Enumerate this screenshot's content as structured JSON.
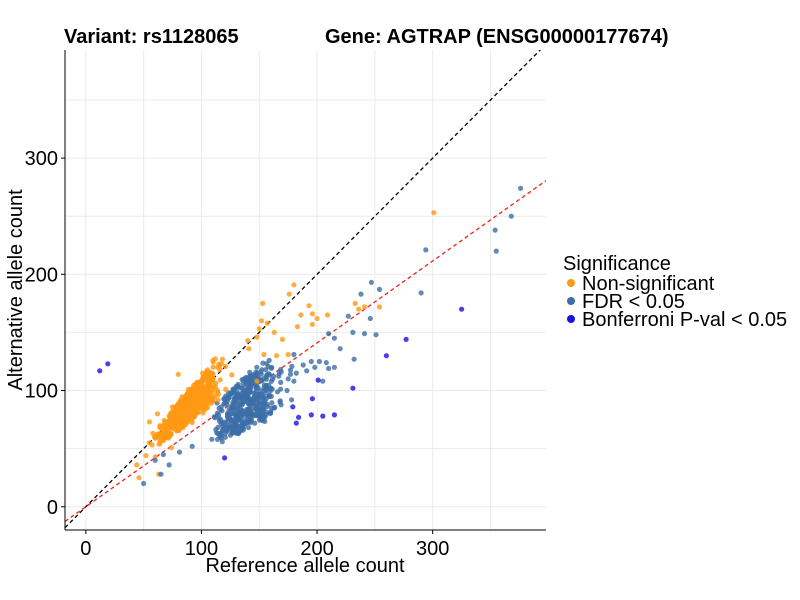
{
  "chart_data": {
    "type": "scatter",
    "title_left": "Variant: rs1128065",
    "title_right": "Gene: AGTRAP (ENSG00000177674)",
    "xlabel": "Reference allele count",
    "ylabel": "Alternative allele count",
    "xlim": [
      -18,
      398
    ],
    "ylim": [
      -20,
      393
    ],
    "x_ticks": [
      0,
      100,
      200,
      300
    ],
    "y_ticks": [
      0,
      100,
      200,
      300
    ],
    "grid": true,
    "legend": {
      "title": "Significance",
      "position": "right",
      "entries": [
        {
          "label": "Non-significant",
          "color": "#ff9914"
        },
        {
          "label": "FDR < 0.05",
          "color": "#3c6ea7"
        },
        {
          "label": "Bonferroni P-val < 0.05",
          "color": "#1a10e8"
        }
      ]
    },
    "reference_lines": [
      {
        "name": "identity",
        "slope": 1.0,
        "intercept": 0,
        "color": "#000000",
        "style": "dashed"
      },
      {
        "name": "fit",
        "slope": 0.705,
        "intercept": 0,
        "color": "#e8231d",
        "style": "dashed"
      }
    ],
    "cloud": {
      "note": "dense cloud of several hundred points, approx. 40-190 ref / 30-175 alt",
      "nonsig_count": 650,
      "fdr_count": 420,
      "ref_range": [
        38,
        190
      ],
      "alt_ratio_nonsig": [
        0.82,
        1.12
      ],
      "alt_ratio_fdr": [
        0.48,
        0.8
      ]
    },
    "series": [
      {
        "name": "Non-significant",
        "color": "#ff9914",
        "points": [
          [
            301,
            253
          ],
          [
            233,
            175
          ],
          [
            254,
            172
          ],
          [
            241,
            172
          ],
          [
            236,
            170
          ],
          [
            180,
            191
          ],
          [
            196,
            166
          ],
          [
            200,
            162
          ],
          [
            209,
            165
          ],
          [
            196,
            157
          ],
          [
            186,
            165
          ],
          [
            193,
            173
          ],
          [
            152,
            160
          ],
          [
            157,
            158
          ],
          [
            150,
            153
          ],
          [
            140,
            143
          ],
          [
            148,
            146
          ],
          [
            170,
            144
          ],
          [
            175,
            131
          ],
          [
            154,
            131
          ],
          [
            176,
            183
          ],
          [
            163,
            150
          ],
          [
            165,
            130
          ],
          [
            183,
            155
          ],
          [
            60,
            43
          ],
          [
            44,
            36
          ],
          [
            46,
            25
          ],
          [
            63,
            28
          ],
          [
            52,
            44
          ],
          [
            55,
            55
          ],
          [
            64,
            62
          ],
          [
            75,
            86
          ],
          [
            90,
            92
          ],
          [
            96,
            107
          ],
          [
            101,
            115
          ],
          [
            121,
            101
          ],
          [
            141,
            136
          ],
          [
            62,
            80
          ],
          [
            148,
            108
          ],
          [
            55,
            73
          ],
          [
            153,
            175
          ],
          [
            80,
            114
          ],
          [
            74,
            51
          ]
        ]
      },
      {
        "name": "FDR < 0.05",
        "color": "#3c6ea7",
        "points": [
          [
            376,
            274
          ],
          [
            368,
            250
          ],
          [
            354,
            238
          ],
          [
            355,
            220
          ],
          [
            294,
            221
          ],
          [
            290,
            184
          ],
          [
            247,
            193
          ],
          [
            251,
            148
          ],
          [
            238,
            183
          ],
          [
            246,
            162
          ],
          [
            232,
            127
          ],
          [
            220,
            136
          ],
          [
            210,
            149
          ],
          [
            215,
            120
          ],
          [
            215,
            145
          ],
          [
            210,
            119
          ],
          [
            202,
            125
          ],
          [
            195,
            125
          ],
          [
            198,
            120
          ],
          [
            188,
            122
          ],
          [
            180,
            131
          ],
          [
            177,
            114
          ],
          [
            182,
            115
          ],
          [
            169,
            116
          ],
          [
            175,
            110
          ],
          [
            160,
            102
          ],
          [
            156,
            93
          ],
          [
            152,
            75
          ],
          [
            130,
            76
          ],
          [
            122,
            66
          ],
          [
            118,
            56
          ],
          [
            116,
            60
          ],
          [
            109,
            58
          ],
          [
            92,
            52
          ],
          [
            81,
            47
          ],
          [
            72,
            36
          ],
          [
            65,
            28
          ],
          [
            50,
            20
          ],
          [
            60,
            40
          ],
          [
            67,
            45
          ],
          [
            174,
            100
          ],
          [
            191,
            117
          ],
          [
            208,
            124
          ],
          [
            231,
            150
          ],
          [
            227,
            164
          ],
          [
            241,
            149
          ],
          [
            254,
            187
          ],
          [
            163,
            85
          ],
          [
            168,
            90
          ],
          [
            180,
            108
          ],
          [
            205,
            108
          ],
          [
            178,
            92
          ]
        ]
      },
      {
        "name": "Bonferroni P-val < 0.05",
        "color": "#1a10e8",
        "points": [
          [
            12,
            117
          ],
          [
            19,
            123
          ],
          [
            325,
            170
          ],
          [
            277,
            144
          ],
          [
            260,
            130
          ],
          [
            231,
            102
          ],
          [
            201,
            109
          ],
          [
            196,
            93
          ],
          [
            179,
            86
          ],
          [
            195,
            79
          ],
          [
            184,
            77
          ],
          [
            205,
            78
          ],
          [
            215,
            79
          ],
          [
            182,
            72
          ],
          [
            120,
            42
          ]
        ]
      }
    ]
  }
}
